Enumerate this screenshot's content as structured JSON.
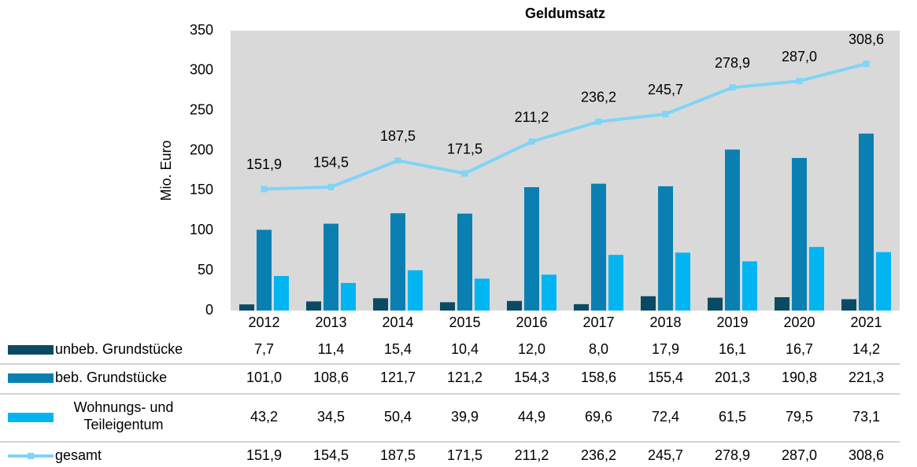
{
  "chart_data": {
    "type": "bar",
    "title": "Geldumsatz",
    "y_label": "Mio. Euro",
    "categories": [
      "2012",
      "2013",
      "2014",
      "2015",
      "2016",
      "2017",
      "2018",
      "2019",
      "2020",
      "2021"
    ],
    "ylim": [
      0,
      350
    ],
    "yticks": [
      0,
      50,
      100,
      150,
      200,
      250,
      300,
      350
    ],
    "grid": false,
    "series": [
      {
        "name": "unbeb. Grundstücke",
        "type": "bar",
        "color": "#0b4a63",
        "values": [
          7.7,
          11.4,
          15.4,
          10.4,
          12.0,
          8.0,
          17.9,
          16.1,
          16.7,
          14.2
        ],
        "value_labels": [
          "7,7",
          "11,4",
          "15,4",
          "10,4",
          "12,0",
          "8,0",
          "17,9",
          "16,1",
          "16,7",
          "14,2"
        ]
      },
      {
        "name": "beb. Grundstücke",
        "type": "bar",
        "color": "#0a80b2",
        "values": [
          101.0,
          108.6,
          121.7,
          121.2,
          154.3,
          158.6,
          155.4,
          201.3,
          190.8,
          221.3
        ],
        "value_labels": [
          "101,0",
          "108,6",
          "121,7",
          "121,2",
          "154,3",
          "158,6",
          "155,4",
          "201,3",
          "190,8",
          "221,3"
        ]
      },
      {
        "name": "Wohnungs- und Teileigentum",
        "type": "bar",
        "color": "#00b5f1",
        "values": [
          43.2,
          34.5,
          50.4,
          39.9,
          44.9,
          69.6,
          72.4,
          61.5,
          79.5,
          73.1
        ],
        "value_labels": [
          "43,2",
          "34,5",
          "50,4",
          "39,9",
          "44,9",
          "69,6",
          "72,4",
          "61,5",
          "79,5",
          "73,1"
        ]
      },
      {
        "name": "gesamt",
        "type": "line",
        "color": "#7fd4f7",
        "values": [
          151.9,
          154.5,
          187.5,
          171.5,
          211.2,
          236.2,
          245.7,
          278.9,
          287.0,
          308.6
        ],
        "value_labels": [
          "151,9",
          "154,5",
          "187,5",
          "171,5",
          "211,2",
          "236,2",
          "245,7",
          "278,9",
          "287,0",
          "308,6"
        ]
      }
    ]
  }
}
